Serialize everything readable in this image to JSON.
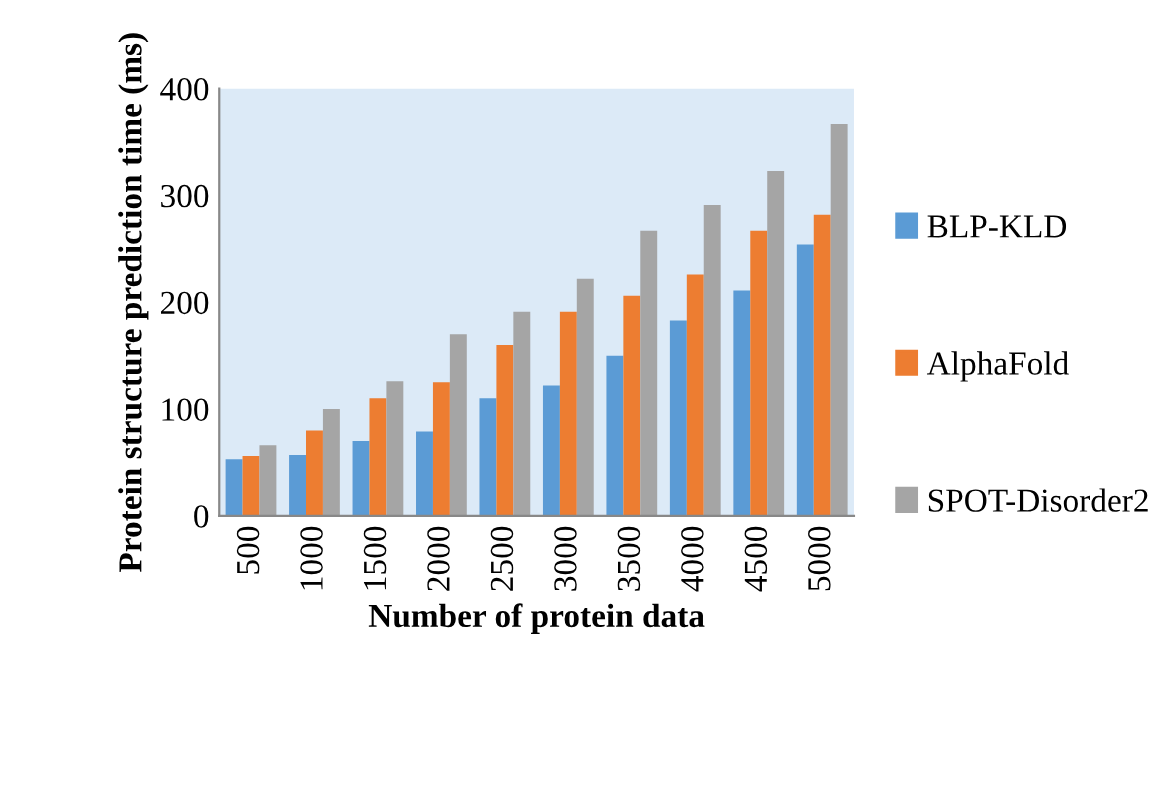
{
  "chart_data": {
    "type": "bar",
    "xlabel": "Number of protein data",
    "ylabel": "Protein structure prediction time (ms)",
    "categories": [
      "500",
      "1000",
      "1500",
      "2000",
      "2500",
      "3000",
      "3500",
      "4000",
      "4500",
      "5000"
    ],
    "series": [
      {
        "name": "BLP-KLD",
        "color": "#5b9bd5",
        "values": [
          53,
          57,
          70,
          79,
          110,
          122,
          150,
          183,
          211,
          254
        ]
      },
      {
        "name": "AlphaFold",
        "color": "#ed7d31",
        "values": [
          56,
          80,
          110,
          125,
          160,
          191,
          206,
          226,
          267,
          282
        ]
      },
      {
        "name": "SPOT-Disorder2",
        "color": "#a5a5a5",
        "values": [
          66,
          100,
          126,
          170,
          191,
          222,
          267,
          291,
          323,
          367
        ]
      }
    ],
    "ylim": [
      0,
      400
    ],
    "yticks": [
      0,
      100,
      200,
      300,
      400
    ],
    "grid": false,
    "legend": "right"
  }
}
